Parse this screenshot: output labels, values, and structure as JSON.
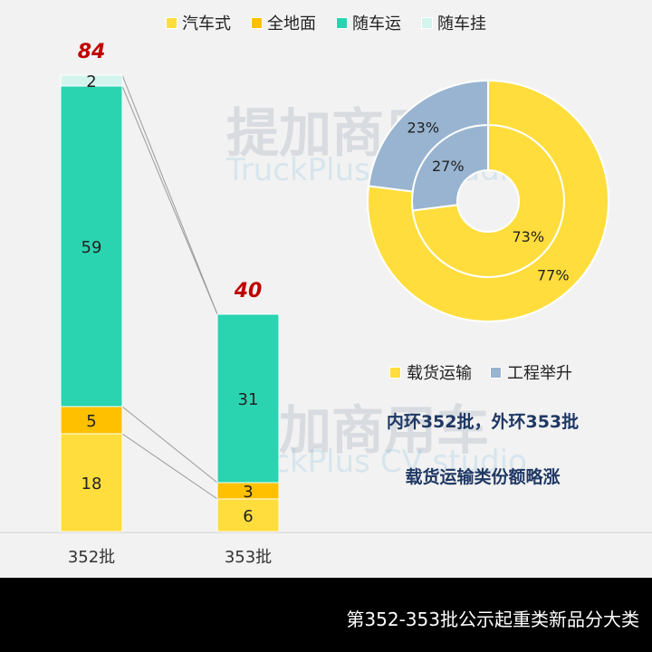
{
  "chart_data": [
    {
      "type": "bar",
      "stacked": true,
      "categories": [
        "352批",
        "353批"
      ],
      "series": [
        {
          "name": "汽车式",
          "values": [
            18,
            6
          ],
          "color": "#ffdd3c"
        },
        {
          "name": "全地面",
          "values": [
            5,
            3
          ],
          "color": "#ffc000"
        },
        {
          "name": "随车运",
          "values": [
            59,
            31
          ],
          "color": "#2ad4b0"
        },
        {
          "name": "随车挂",
          "values": [
            2,
            0
          ],
          "color": "#d4f4ee"
        }
      ],
      "totals": [
        84,
        40
      ],
      "legend": "top",
      "grid": false
    },
    {
      "type": "pie",
      "donut": true,
      "categories": [
        "载货运输",
        "工程举升"
      ],
      "colors": [
        "#ffdd3c",
        "#98b4d0"
      ],
      "rings": [
        {
          "ring": "inner",
          "label": "352批",
          "values": [
            73,
            27
          ]
        },
        {
          "ring": "outer",
          "label": "353批",
          "values": [
            77,
            23
          ]
        }
      ],
      "legend": "bottom"
    }
  ],
  "annotations": [
    "内环352批，外环353批",
    "载货运输类份额略涨"
  ],
  "watermark": {
    "cn": "提加商用车",
    "en": "TruckPlus CV studio"
  },
  "footer": "第352-353批公示起重类新品分大类",
  "total_color": "#c00000"
}
